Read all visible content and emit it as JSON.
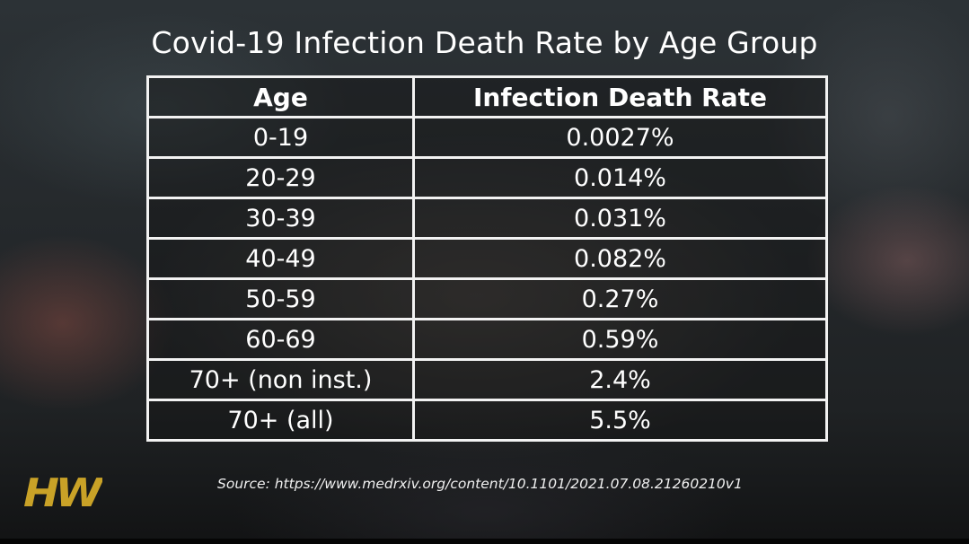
{
  "title": "Covid-19 Infection Death Rate by Age Group",
  "logo_text": "HW",
  "colors": {
    "logo": "#c9a227",
    "grid": "#f2f2f2",
    "text": "#ffffff"
  },
  "source": "Source: https://www.medrxiv.org/content/10.1101/2021.07.08.21260210v1",
  "chart_data": {
    "type": "table",
    "title": "Covid-19 Infection Death Rate by Age Group",
    "columns": [
      "Age",
      "Infection Death Rate"
    ],
    "rows": [
      [
        "0-19",
        "0.0027%"
      ],
      [
        "20-29",
        "0.014%"
      ],
      [
        "30-39",
        "0.031%"
      ],
      [
        "40-49",
        "0.082%"
      ],
      [
        "50-59",
        "0.27%"
      ],
      [
        "60-69",
        "0.59%"
      ],
      [
        "70+ (non inst.)",
        "2.4%"
      ],
      [
        "70+ (all)",
        "5.5%"
      ]
    ]
  }
}
